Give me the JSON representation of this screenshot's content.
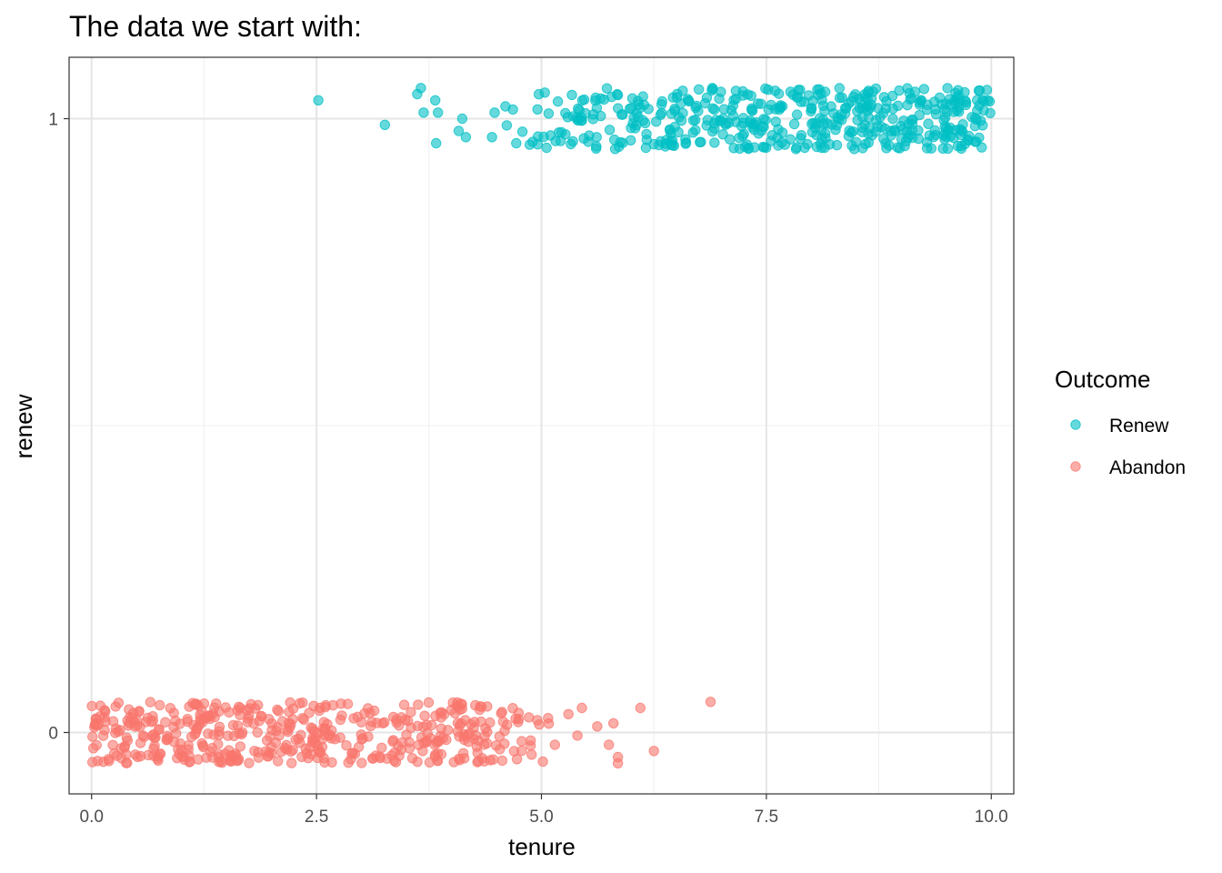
{
  "chart_data": {
    "type": "scatter",
    "title": "The data we start with:",
    "xlabel": "tenure",
    "ylabel": "renew",
    "xlim": [
      -0.25,
      10.25
    ],
    "ylim": [
      -0.1,
      1.1
    ],
    "x_ticks": [
      0,
      2.5,
      5,
      7.5,
      10
    ],
    "x_tick_labels": [
      "0.0",
      "2.5",
      "5.0",
      "7.5",
      "10.0"
    ],
    "y_ticks": [
      0,
      1
    ],
    "y_tick_labels": [
      "0",
      "1"
    ],
    "grid": true,
    "theme": "bw",
    "legend": {
      "title": "Outcome",
      "position": "right",
      "entries": [
        {
          "label": "Renew",
          "color": "#00BFC4"
        },
        {
          "label": "Abandon",
          "color": "#F8766D"
        }
      ]
    },
    "series": [
      {
        "name": "Renew",
        "color": "#00BFC4",
        "y_center": 1,
        "jitter": 0.05,
        "notable_points": [
          {
            "x": 2.52,
            "y": 1.03
          },
          {
            "x": 3.26,
            "y": 0.99
          },
          {
            "x": 3.62,
            "y": 1.04
          },
          {
            "x": 3.66,
            "y": 1.05
          },
          {
            "x": 3.69,
            "y": 1.01
          },
          {
            "x": 3.82,
            "y": 1.03
          },
          {
            "x": 3.85,
            "y": 1.01
          },
          {
            "x": 3.83,
            "y": 0.96
          },
          {
            "x": 4.12,
            "y": 1.0
          },
          {
            "x": 4.08,
            "y": 0.98
          },
          {
            "x": 4.16,
            "y": 0.97
          },
          {
            "x": 4.45,
            "y": 0.97
          },
          {
            "x": 4.48,
            "y": 1.01
          },
          {
            "x": 4.6,
            "y": 1.02
          },
          {
            "x": 4.72,
            "y": 0.96
          },
          {
            "x": 6.9,
            "y": 1.05
          }
        ],
        "bulk": {
          "x_range": [
            4.5,
            10.0
          ],
          "count": 470
        }
      },
      {
        "name": "Abandon",
        "color": "#F8766D",
        "y_center": 0,
        "jitter": 0.05,
        "notable_points": [
          {
            "x": 6.1,
            "y": 0.04
          },
          {
            "x": 6.88,
            "y": 0.05
          },
          {
            "x": 6.25,
            "y": -0.03
          },
          {
            "x": 5.85,
            "y": -0.04
          },
          {
            "x": 5.85,
            "y": -0.05
          },
          {
            "x": 5.75,
            "y": -0.02
          },
          {
            "x": 5.62,
            "y": 0.01
          },
          {
            "x": 5.8,
            "y": 0.015
          },
          {
            "x": 5.45,
            "y": 0.04
          },
          {
            "x": 5.3,
            "y": 0.03
          },
          {
            "x": 5.15,
            "y": -0.02
          },
          {
            "x": 5.4,
            "y": -0.005
          }
        ],
        "bulk": {
          "x_range": [
            0.0,
            5.1
          ],
          "count": 470
        }
      }
    ]
  }
}
